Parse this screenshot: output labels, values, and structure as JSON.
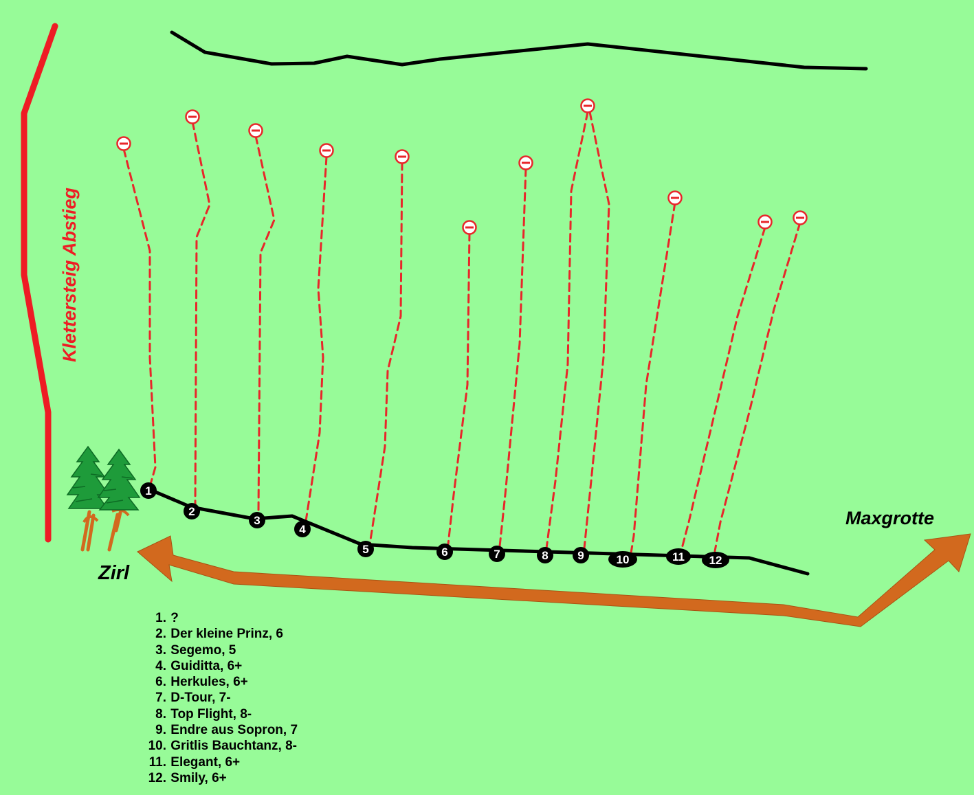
{
  "labels": {
    "klettersteig": "Klettersteig Abstieg",
    "maxgrotte": "Maxgrotte",
    "zirl": "Zirl"
  },
  "colors": {
    "background": "#97fb98",
    "route": "#e8262a",
    "klettersteig": "#ee1c24",
    "path": "#000000",
    "arrow": "#d2691e",
    "tree_green": "#1e9b3a",
    "tree_trunk": "#d2691e"
  },
  "icons": [
    "tree-icon",
    "anchor-icon",
    "arrow-icon"
  ],
  "route_markers": [
    "1",
    "2",
    "3",
    "4",
    "5",
    "6",
    "7",
    "8",
    "9",
    "10",
    "11",
    "12"
  ],
  "legend": [
    {
      "num": "1.",
      "text": "?"
    },
    {
      "num": "2.",
      "text": "Der kleine Prinz, 6"
    },
    {
      "num": "3.",
      "text": "Segemo, 5"
    },
    {
      "num": "4.",
      "text": "Guiditta, 6+"
    },
    {
      "num": "6.",
      "text": "Herkules, 6+"
    },
    {
      "num": "7.",
      "text": "D-Tour, 7-"
    },
    {
      "num": "8.",
      "text": "Top Flight, 8-"
    },
    {
      "num": "9.",
      "text": "Endre aus Sopron, 7"
    },
    {
      "num": "10.",
      "text": "Gritlis Bauchtanz, 8-"
    },
    {
      "num": "11.",
      "text": "Elegant, 6+"
    },
    {
      "num": "12.",
      "text": "Smily, 6+"
    }
  ]
}
